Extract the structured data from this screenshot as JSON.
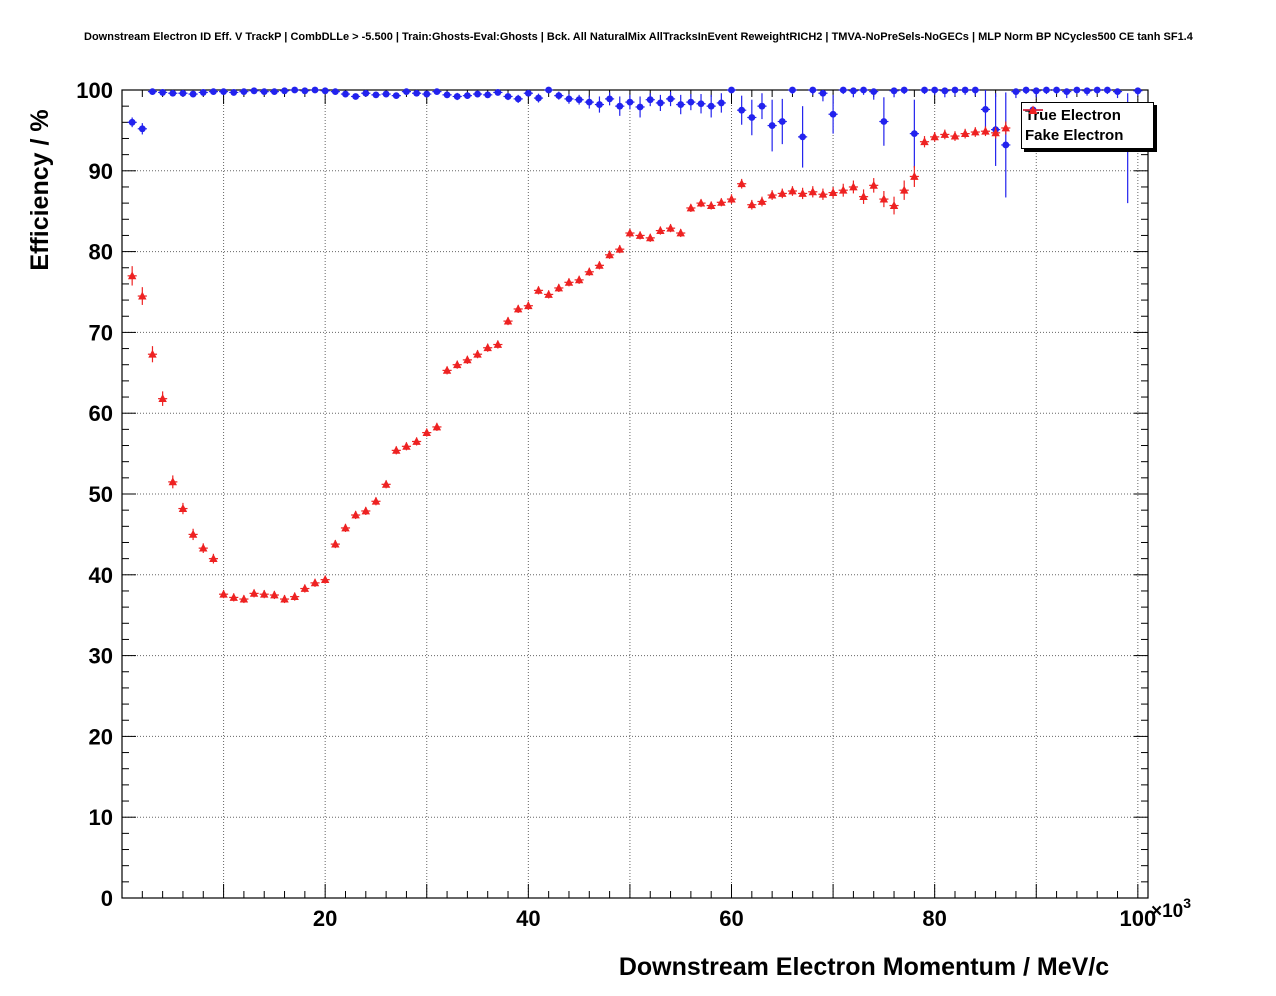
{
  "header": {
    "title": "Downstream Electron ID Eff. V TrackP | CombDLLe > -5.500 | Train:Ghosts-Eval:Ghosts | Bck. All NaturalMix AllTracksInEvent ReweightRICH2 | TMVA-NoPreSels-NoGECs | MLP Norm BP NCycles500 CE tanh SF1.4"
  },
  "chart_data": {
    "type": "scatter",
    "title": "Downstream Electron ID Eff. V TrackP | CombDLLe > -5.500 | Train:Ghosts-Eval:Ghosts | Bck. All NaturalMix AllTracksInEvent ReweightRICH2 | TMVA-NoPreSels-NoGECs | MLP Norm BP NCycles500 CE tanh SF1.4",
    "xlabel": "Downstream Electron Momentum / MeV/c",
    "ylabel": "Efficiency / %",
    "x_multiplier": {
      "base": "×10",
      "exp": "3"
    },
    "xlim": [
      0,
      101
    ],
    "ylim": [
      0,
      100
    ],
    "x_unit_scale": "1000 MeV/c per axis unit",
    "grid": true,
    "grid_style": "dotted",
    "x_tick_labels": [
      20,
      40,
      60,
      80,
      100
    ],
    "y_tick_labels": [
      0,
      10,
      20,
      30,
      40,
      50,
      60,
      70,
      80,
      90,
      100
    ],
    "x_major_step": 10,
    "x_minor_step": 2,
    "y_major_step": 10,
    "y_minor_step": 2,
    "legend": {
      "position": "top-right",
      "entries": [
        {
          "label": "True Electron",
          "marker": "circle",
          "color": "#2222ee"
        },
        {
          "label": "Fake Electron",
          "marker": "triangle",
          "color": "#ee2222"
        }
      ]
    },
    "series": [
      {
        "name": "True Electron",
        "marker": "circle",
        "color": "#2222ee",
        "x_start": 1,
        "x_step": 1,
        "y": [
          96.0,
          95.2,
          99.8,
          99.7,
          99.6,
          99.6,
          99.5,
          99.7,
          99.8,
          99.8,
          99.7,
          99.8,
          99.9,
          99.8,
          99.8,
          99.9,
          100,
          99.9,
          100,
          99.9,
          99.8,
          99.5,
          99.2,
          99.6,
          99.4,
          99.5,
          99.3,
          99.8,
          99.6,
          99.5,
          99.8,
          99.4,
          99.2,
          99.3,
          99.5,
          99.4,
          99.7,
          99.2,
          98.9,
          99.6,
          99.0,
          100,
          99.3,
          98.9,
          98.8,
          98.5,
          98.2,
          98.9,
          98.0,
          98.5,
          97.9,
          98.8,
          98.4,
          98.9,
          98.2,
          98.5,
          98.3,
          98.0,
          98.4,
          100,
          97.5,
          96.6,
          98.0,
          95.6,
          96.1,
          100,
          94.2,
          100,
          99.6,
          97.0,
          100,
          99.9,
          100,
          99.8,
          96.1,
          99.9,
          100,
          94.6,
          100,
          100,
          99.9,
          100,
          100,
          100,
          97.6,
          95.1,
          93.2,
          99.8,
          100,
          99.9,
          100,
          100,
          99.8,
          100,
          99.9,
          100,
          100,
          99.8,
          92.8,
          99.9
        ],
        "yerr": [
          0.6,
          0.7,
          0.2,
          0.25,
          0.25,
          0.25,
          0.25,
          0.25,
          0.25,
          0.25,
          0.25,
          0.25,
          0.2,
          0.25,
          0.25,
          0.2,
          0.2,
          0.2,
          0.2,
          0.2,
          0.25,
          0.3,
          0.35,
          0.3,
          0.3,
          0.3,
          0.35,
          0.25,
          0.3,
          0.3,
          0.3,
          0.4,
          0.45,
          0.4,
          0.4,
          0.4,
          0.35,
          0.45,
          0.5,
          0.4,
          0.55,
          0.3,
          0.5,
          0.6,
          0.6,
          0.8,
          1.0,
          0.8,
          1.2,
          0.9,
          1.3,
          0.8,
          1.0,
          0.9,
          1.2,
          1.0,
          1.2,
          1.4,
          1.2,
          0.4,
          1.8,
          2.2,
          1.6,
          3.2,
          2.8,
          0.5,
          3.8,
          0.6,
          1.0,
          2.4,
          0.5,
          0.8,
          0.6,
          1.0,
          3.0,
          0.8,
          0.5,
          4.2,
          0.5,
          0.6,
          0.8,
          0.7,
          0.6,
          0.7,
          2.4,
          4.5,
          6.5,
          0.8,
          0.5,
          0.8,
          0.5,
          0.5,
          0.8,
          0.5,
          0.6,
          0.5,
          0.5,
          0.8,
          6.8,
          0.6
        ]
      },
      {
        "name": "Fake Electron",
        "marker": "triangle",
        "color": "#ee2222",
        "x_start": 1,
        "x_step": 1,
        "y": [
          77.0,
          74.5,
          67.3,
          61.8,
          51.5,
          48.2,
          45.0,
          43.3,
          42.0,
          37.6,
          37.2,
          37.0,
          37.7,
          37.6,
          37.5,
          37.0,
          37.3,
          38.3,
          39.0,
          39.4,
          43.8,
          45.8,
          47.4,
          47.9,
          49.1,
          51.2,
          55.4,
          55.9,
          56.5,
          57.6,
          58.3,
          65.3,
          66.0,
          66.6,
          67.3,
          68.1,
          68.5,
          71.4,
          72.9,
          73.3,
          75.2,
          74.7,
          75.5,
          76.2,
          76.5,
          77.5,
          78.3,
          79.6,
          80.3,
          82.3,
          82.0,
          81.7,
          82.6,
          82.9,
          82.3,
          85.4,
          86.0,
          85.7,
          86.1,
          86.5,
          88.4,
          85.8,
          86.2,
          87.0,
          87.2,
          87.5,
          87.2,
          87.4,
          87.1,
          87.3,
          87.6,
          88.0,
          86.8,
          88.2,
          86.5,
          85.7,
          87.6,
          89.3,
          93.6,
          94.2,
          94.5,
          94.3,
          94.6,
          94.8,
          94.9,
          94.7,
          95.3
        ],
        "yerr": [
          1.2,
          1.1,
          1.0,
          0.9,
          0.8,
          0.7,
          0.7,
          0.6,
          0.6,
          0.5,
          0.5,
          0.5,
          0.5,
          0.5,
          0.5,
          0.5,
          0.5,
          0.5,
          0.5,
          0.5,
          0.5,
          0.5,
          0.5,
          0.5,
          0.5,
          0.5,
          0.5,
          0.5,
          0.5,
          0.5,
          0.5,
          0.5,
          0.5,
          0.5,
          0.5,
          0.5,
          0.5,
          0.5,
          0.5,
          0.5,
          0.5,
          0.5,
          0.5,
          0.5,
          0.5,
          0.5,
          0.5,
          0.5,
          0.5,
          0.5,
          0.5,
          0.5,
          0.5,
          0.5,
          0.5,
          0.5,
          0.5,
          0.5,
          0.5,
          0.6,
          0.6,
          0.6,
          0.6,
          0.6,
          0.6,
          0.6,
          0.7,
          0.7,
          0.7,
          0.7,
          0.8,
          0.8,
          0.9,
          0.9,
          1.0,
          1.1,
          1.2,
          1.3,
          0.7,
          0.6,
          0.6,
          0.6,
          0.6,
          0.6,
          0.6,
          0.7,
          0.8
        ]
      }
    ]
  }
}
